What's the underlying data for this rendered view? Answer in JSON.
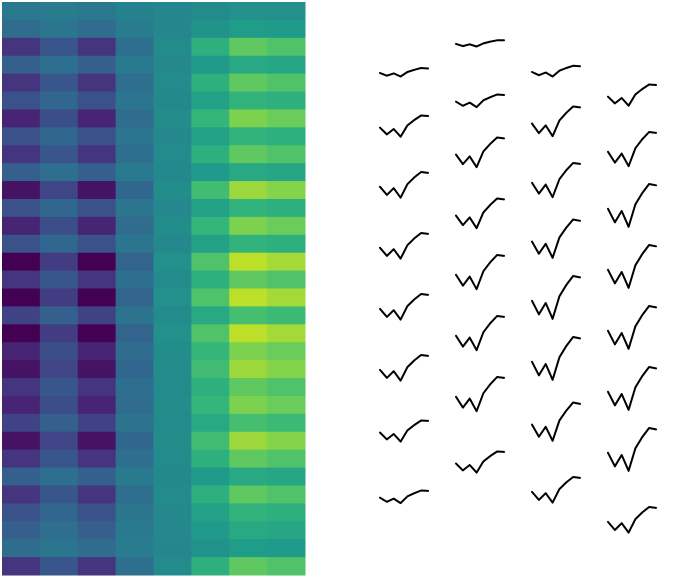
{
  "chart_data": [
    {
      "type": "heatmap",
      "zlim": [
        0,
        1
      ],
      "colormap": [
        "#440154",
        "#482878",
        "#3e4989",
        "#31688e",
        "#26828e",
        "#1f9e89",
        "#35b779",
        "#6ece58",
        "#b5de2b",
        "#fde725"
      ],
      "values": [
        [
          0.4,
          0.42,
          0.4,
          0.44,
          0.46,
          0.48,
          0.5,
          0.5
        ],
        [
          0.35,
          0.39,
          0.35,
          0.42,
          0.46,
          0.51,
          0.55,
          0.54
        ],
        [
          0.15,
          0.27,
          0.15,
          0.36,
          0.48,
          0.63,
          0.75,
          0.72
        ],
        [
          0.3,
          0.36,
          0.3,
          0.41,
          0.47,
          0.54,
          0.6,
          0.59
        ],
        [
          0.15,
          0.27,
          0.15,
          0.36,
          0.48,
          0.63,
          0.75,
          0.72
        ],
        [
          0.25,
          0.33,
          0.25,
          0.39,
          0.47,
          0.57,
          0.65,
          0.63
        ],
        [
          0.1,
          0.24,
          0.1,
          0.35,
          0.49,
          0.66,
          0.8,
          0.77
        ],
        [
          0.25,
          0.33,
          0.25,
          0.39,
          0.47,
          0.57,
          0.65,
          0.63
        ],
        [
          0.15,
          0.27,
          0.15,
          0.36,
          0.48,
          0.63,
          0.75,
          0.72
        ],
        [
          0.3,
          0.36,
          0.3,
          0.41,
          0.47,
          0.54,
          0.6,
          0.59
        ],
        [
          0.05,
          0.21,
          0.05,
          0.33,
          0.49,
          0.69,
          0.85,
          0.81
        ],
        [
          0.25,
          0.33,
          0.25,
          0.39,
          0.47,
          0.57,
          0.65,
          0.63
        ],
        [
          0.1,
          0.24,
          0.1,
          0.35,
          0.49,
          0.66,
          0.8,
          0.77
        ],
        [
          0.25,
          0.33,
          0.25,
          0.39,
          0.47,
          0.57,
          0.65,
          0.63
        ],
        [
          0.0,
          0.18,
          0.0,
          0.32,
          0.5,
          0.72,
          0.9,
          0.86
        ],
        [
          0.15,
          0.27,
          0.15,
          0.36,
          0.48,
          0.63,
          0.75,
          0.72
        ],
        [
          0.0,
          0.18,
          0.0,
          0.32,
          0.5,
          0.72,
          0.9,
          0.86
        ],
        [
          0.2,
          0.3,
          0.2,
          0.38,
          0.48,
          0.6,
          0.7,
          0.68
        ],
        [
          0.0,
          0.18,
          0.0,
          0.32,
          0.5,
          0.72,
          0.9,
          0.86
        ],
        [
          0.1,
          0.24,
          0.1,
          0.35,
          0.49,
          0.66,
          0.8,
          0.77
        ],
        [
          0.05,
          0.21,
          0.05,
          0.33,
          0.49,
          0.69,
          0.85,
          0.81
        ],
        [
          0.15,
          0.27,
          0.15,
          0.36,
          0.48,
          0.63,
          0.75,
          0.72
        ],
        [
          0.1,
          0.24,
          0.1,
          0.35,
          0.49,
          0.66,
          0.8,
          0.77
        ],
        [
          0.2,
          0.3,
          0.2,
          0.38,
          0.48,
          0.6,
          0.7,
          0.68
        ],
        [
          0.05,
          0.21,
          0.05,
          0.33,
          0.49,
          0.69,
          0.85,
          0.81
        ],
        [
          0.15,
          0.27,
          0.15,
          0.36,
          0.48,
          0.63,
          0.75,
          0.72
        ],
        [
          0.3,
          0.36,
          0.3,
          0.41,
          0.47,
          0.54,
          0.6,
          0.59
        ],
        [
          0.15,
          0.27,
          0.15,
          0.36,
          0.48,
          0.63,
          0.75,
          0.72
        ],
        [
          0.25,
          0.33,
          0.25,
          0.39,
          0.47,
          0.57,
          0.65,
          0.63
        ],
        [
          0.3,
          0.36,
          0.3,
          0.41,
          0.47,
          0.54,
          0.6,
          0.59
        ],
        [
          0.35,
          0.39,
          0.35,
          0.42,
          0.46,
          0.51,
          0.55,
          0.54
        ],
        [
          0.15,
          0.27,
          0.15,
          0.36,
          0.48,
          0.63,
          0.75,
          0.72
        ]
      ]
    },
    {
      "type": "sparklines",
      "color": "#000000",
      "ylim": [
        0,
        1
      ],
      "series": [
        {
          "values": [
            0.09,
            0.03,
            0.08,
            0.01,
            0.11,
            0.16,
            0.2,
            0.19
          ]
        },
        {
          "values": [
            0.23,
            0.08,
            0.2,
            0.03,
            0.28,
            0.4,
            0.5,
            0.49
          ]
        },
        {
          "values": [
            0.27,
            0.09,
            0.24,
            0.03,
            0.33,
            0.48,
            0.6,
            0.58
          ]
        },
        {
          "values": [
            0.27,
            0.09,
            0.24,
            0.03,
            0.33,
            0.48,
            0.6,
            0.58
          ]
        },
        {
          "values": [
            0.27,
            0.09,
            0.24,
            0.03,
            0.33,
            0.48,
            0.6,
            0.58
          ]
        },
        {
          "values": [
            0.27,
            0.09,
            0.24,
            0.03,
            0.33,
            0.48,
            0.6,
            0.58
          ]
        },
        {
          "values": [
            0.23,
            0.08,
            0.2,
            0.03,
            0.28,
            0.4,
            0.5,
            0.49
          ]
        },
        {
          "values": [
            0.14,
            0.05,
            0.12,
            0.02,
            0.17,
            0.24,
            0.3,
            0.29
          ]
        },
        {
          "values": [
            0.07,
            0.02,
            0.06,
            0.01,
            0.08,
            0.12,
            0.15,
            0.15
          ]
        },
        {
          "values": [
            0.14,
            0.05,
            0.12,
            0.02,
            0.17,
            0.24,
            0.3,
            0.29
          ]
        },
        {
          "values": [
            0.32,
            0.11,
            0.28,
            0.04,
            0.39,
            0.56,
            0.7,
            0.68
          ]
        },
        {
          "values": [
            0.32,
            0.11,
            0.28,
            0.04,
            0.39,
            0.56,
            0.7,
            0.68
          ]
        },
        {
          "values": [
            0.36,
            0.12,
            0.32,
            0.04,
            0.44,
            0.64,
            0.8,
            0.78
          ]
        },
        {
          "values": [
            0.36,
            0.12,
            0.32,
            0.04,
            0.44,
            0.64,
            0.8,
            0.78
          ]
        },
        {
          "values": [
            0.36,
            0.12,
            0.32,
            0.04,
            0.44,
            0.64,
            0.8,
            0.78
          ]
        },
        {
          "values": [
            0.23,
            0.08,
            0.2,
            0.03,
            0.28,
            0.4,
            0.5,
            0.49
          ]
        },
        {
          "values": [
            0.11,
            0.04,
            0.1,
            0.01,
            0.14,
            0.2,
            0.25,
            0.24
          ]
        },
        {
          "values": [
            0.32,
            0.11,
            0.28,
            0.04,
            0.39,
            0.56,
            0.7,
            0.68
          ]
        },
        {
          "values": [
            0.36,
            0.12,
            0.32,
            0.04,
            0.44,
            0.64,
            0.8,
            0.78
          ]
        },
        {
          "values": [
            0.41,
            0.14,
            0.36,
            0.05,
            0.5,
            0.72,
            0.9,
            0.87
          ]
        },
        {
          "values": [
            0.45,
            0.15,
            0.4,
            0.05,
            0.55,
            0.8,
            1.0,
            0.97
          ]
        },
        {
          "values": [
            0.45,
            0.15,
            0.4,
            0.05,
            0.55,
            0.8,
            1.0,
            0.97
          ]
        },
        {
          "values": [
            0.41,
            0.14,
            0.36,
            0.05,
            0.5,
            0.72,
            0.9,
            0.87
          ]
        },
        {
          "values": [
            0.27,
            0.09,
            0.24,
            0.03,
            0.33,
            0.48,
            0.6,
            0.58
          ]
        },
        {
          "values": [
            0.23,
            0.08,
            0.2,
            0.03,
            0.28,
            0.4,
            0.5,
            0.49
          ]
        },
        {
          "values": [
            0.36,
            0.12,
            0.32,
            0.04,
            0.44,
            0.64,
            0.8,
            0.78
          ]
        },
        {
          "values": [
            0.45,
            0.15,
            0.4,
            0.05,
            0.55,
            0.8,
            1.0,
            0.97
          ]
        },
        {
          "values": [
            0.45,
            0.15,
            0.4,
            0.05,
            0.55,
            0.8,
            1.0,
            0.97
          ]
        },
        {
          "values": [
            0.45,
            0.15,
            0.4,
            0.05,
            0.55,
            0.8,
            1.0,
            0.97
          ]
        },
        {
          "values": [
            0.45,
            0.15,
            0.4,
            0.05,
            0.55,
            0.8,
            1.0,
            0.97
          ]
        },
        {
          "values": [
            0.45,
            0.15,
            0.4,
            0.05,
            0.55,
            0.8,
            1.0,
            0.97
          ]
        },
        {
          "values": [
            0.27,
            0.09,
            0.24,
            0.03,
            0.33,
            0.48,
            0.6,
            0.58
          ]
        }
      ]
    }
  ]
}
